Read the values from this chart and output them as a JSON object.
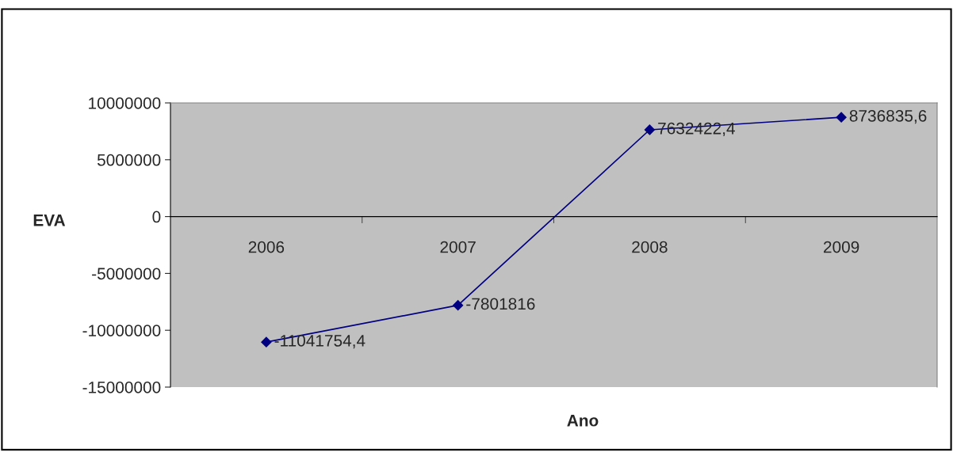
{
  "chart_data": {
    "type": "line",
    "xlabel": "Ano",
    "ylabel": "EVA",
    "categories": [
      "2006",
      "2007",
      "2008",
      "2009"
    ],
    "series": [
      {
        "color": "#000080",
        "values": [
          -11041754.4,
          -7801816,
          7632422.4,
          8736835.6
        ],
        "value_labels": [
          "-11041754,4",
          "-7801816",
          "7632422,4",
          "8736835,6"
        ]
      }
    ],
    "ylim": [
      -15000000,
      10000000
    ],
    "yticks": [
      -15000000,
      -10000000,
      -5000000,
      0,
      5000000,
      10000000
    ],
    "marker": "diamond",
    "line_style": "solid",
    "grid": false,
    "legend": false
  }
}
